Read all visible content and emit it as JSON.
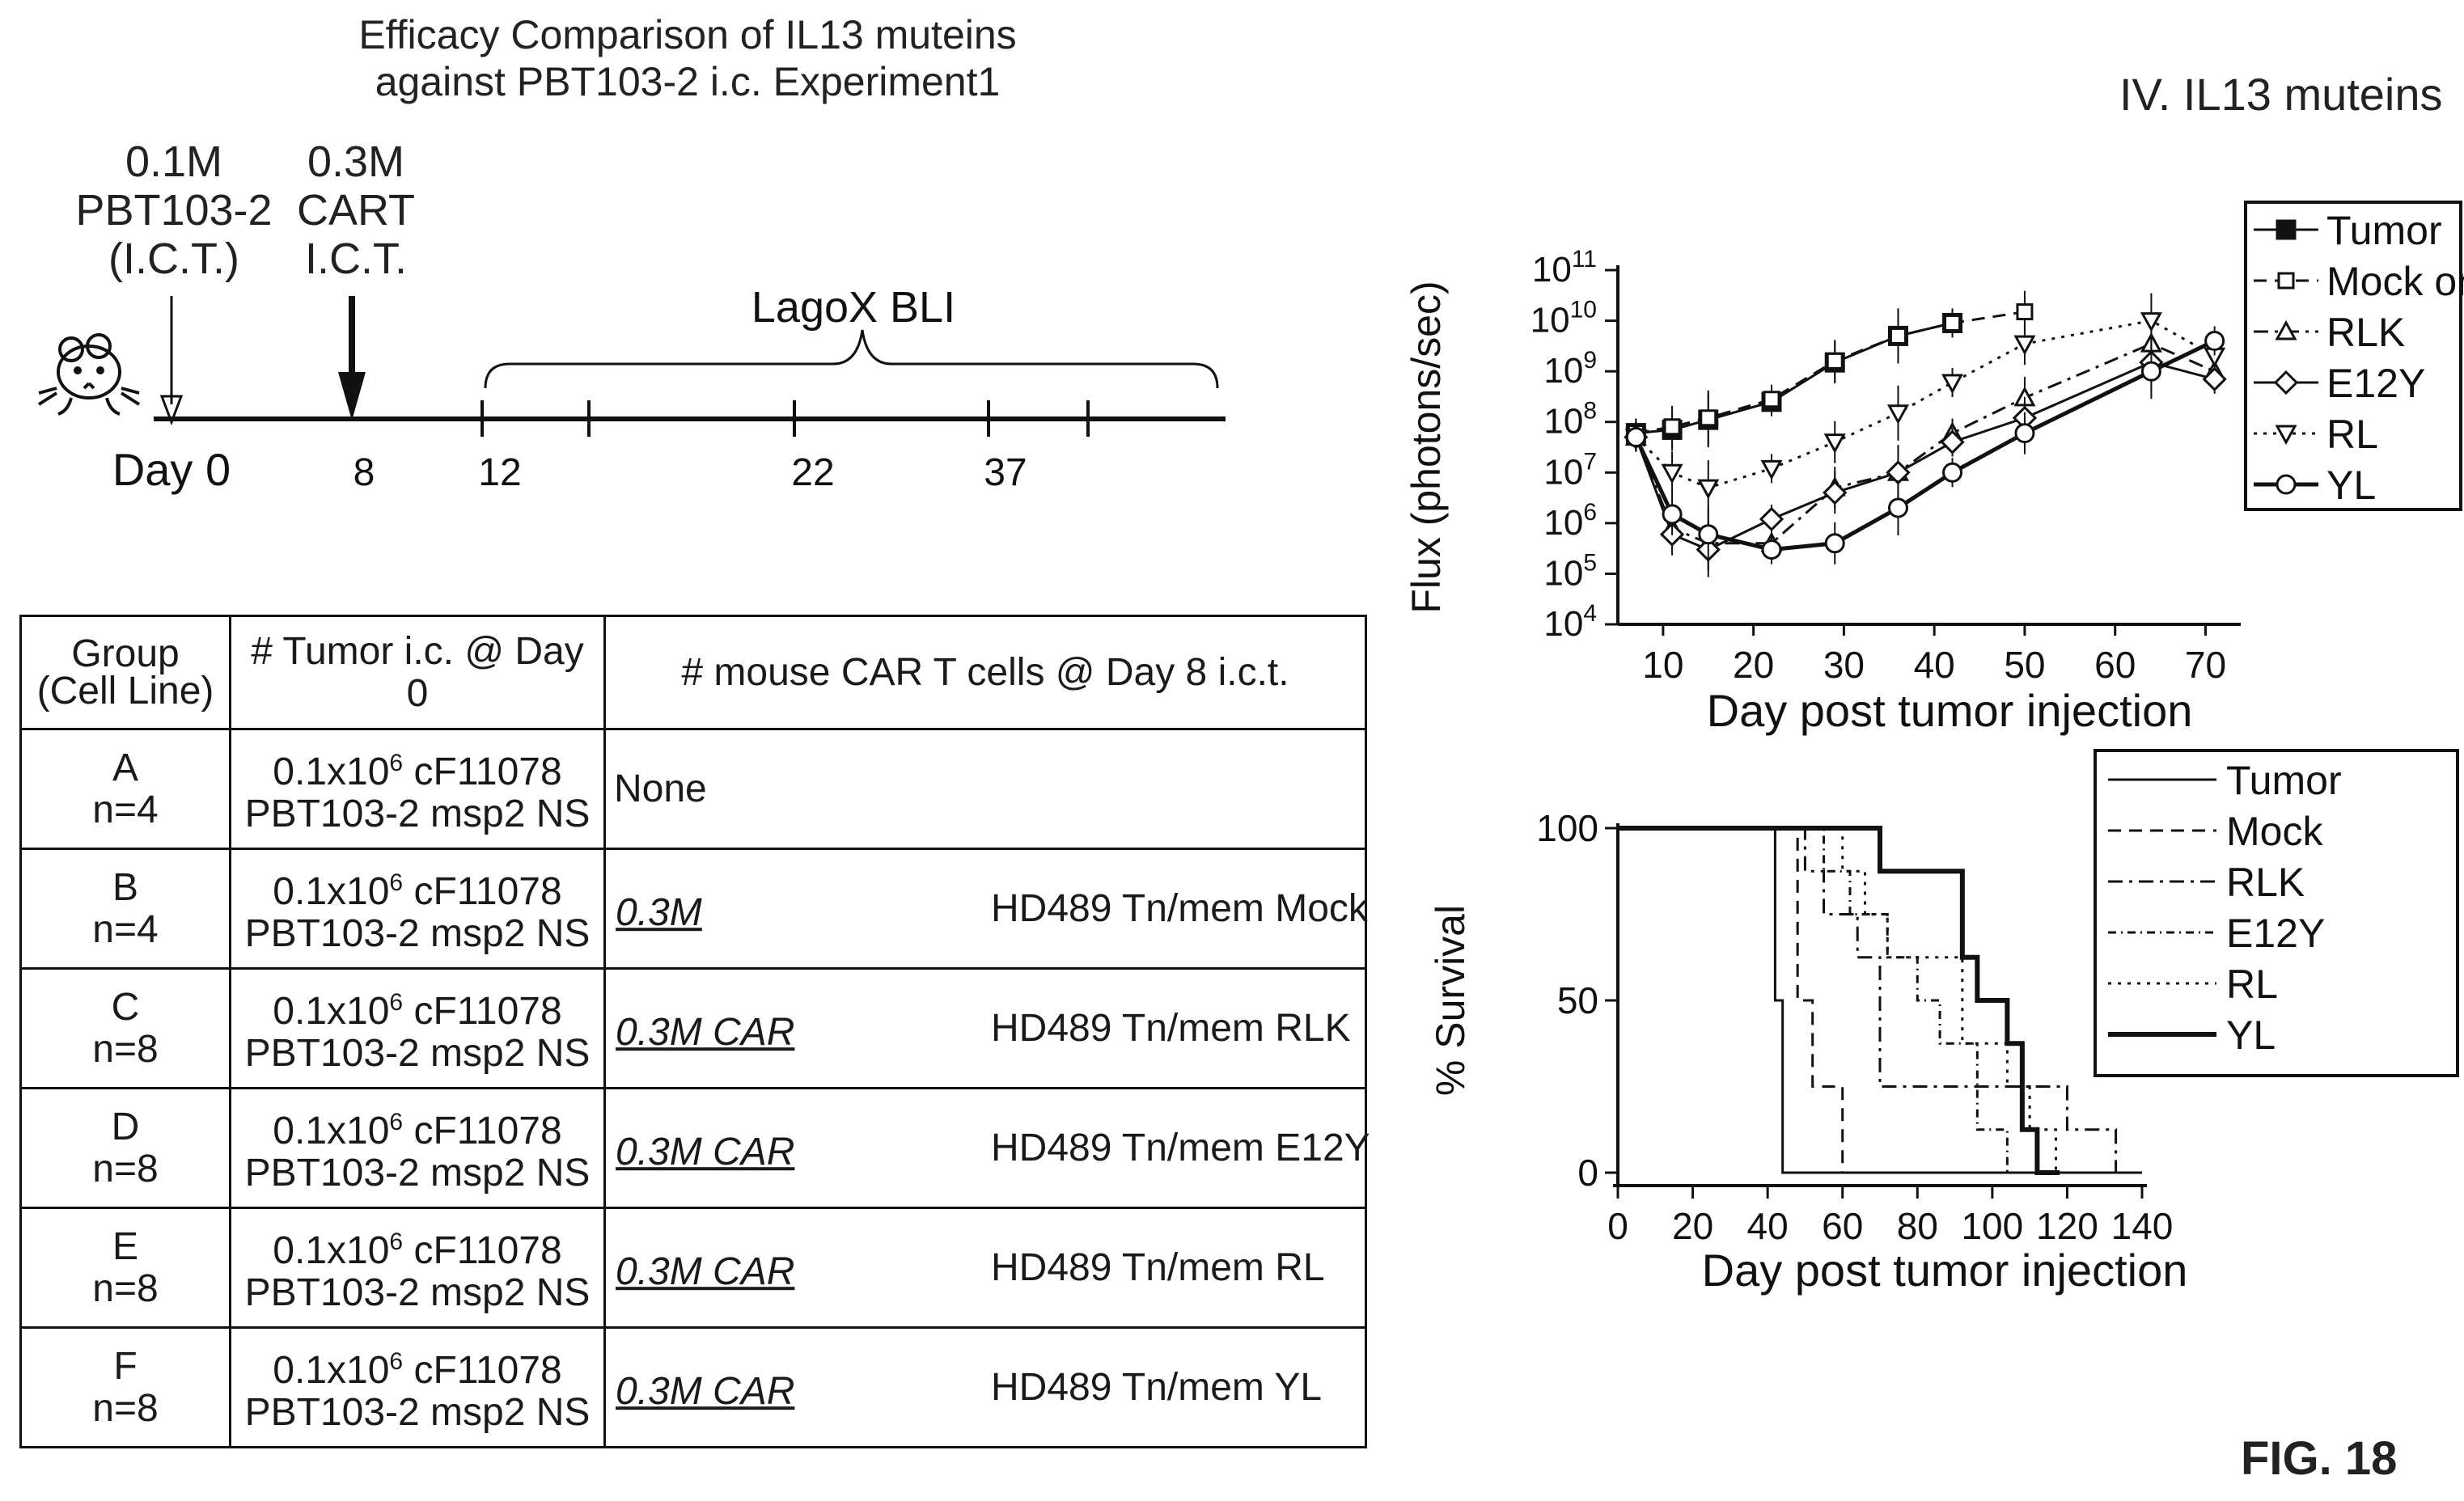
{
  "experiment": {
    "title_line1": "Efficacy Comparison of IL13 muteins",
    "title_line2": "against PBT103-2 i.c. Experiment1",
    "tumor_dose_line1": "0.1M",
    "tumor_dose_line2": "PBT103-2",
    "tumor_dose_line3": "(I.C.T.)",
    "cart_dose_line1": "0.3M",
    "cart_dose_line2": "CART",
    "cart_dose_line3": "I.C.T.",
    "imaging_label": "LagoX BLI",
    "day0_label": "Day 0",
    "day_ticks": [
      "8",
      "12",
      "22",
      "37"
    ]
  },
  "section_label": "IV. IL13 muteins",
  "figure_label": "FIG. 18",
  "table": {
    "headers": {
      "group_line1": "Group",
      "group_line2": "(Cell Line)",
      "tumor": "# Tumor i.c. @ Day 0",
      "cart": "# mouse CAR T cells @ Day 8 i.c.t."
    },
    "rows": [
      {
        "group": "A",
        "n": "n=4",
        "tumor_pre": "0.1x10",
        "tumor_sup": "6",
        "tumor_post": " cF11078",
        "tumor_line2": "PBT103-2 msp2 NS",
        "dose": "",
        "cells": "None"
      },
      {
        "group": "B",
        "n": "n=4",
        "tumor_pre": "0.1x10",
        "tumor_sup": "6",
        "tumor_post": " cF11078",
        "tumor_line2": "PBT103-2 msp2 NS",
        "dose": "0.3M",
        "cells": "HD489 Tn/mem Mock"
      },
      {
        "group": "C",
        "n": "n=8",
        "tumor_pre": "0.1x10",
        "tumor_sup": "6",
        "tumor_post": " cF11078",
        "tumor_line2": "PBT103-2 msp2 NS",
        "dose": "0.3M CAR",
        "cells": "HD489 Tn/mem RLK"
      },
      {
        "group": "D",
        "n": "n=8",
        "tumor_pre": "0.1x10",
        "tumor_sup": "6",
        "tumor_post": " cF11078",
        "tumor_line2": "PBT103-2 msp2 NS",
        "dose": "0.3M CAR",
        "cells": "HD489 Tn/mem E12Y"
      },
      {
        "group": "E",
        "n": "n=8",
        "tumor_pre": "0.1x10",
        "tumor_sup": "6",
        "tumor_post": " cF11078",
        "tumor_line2": "PBT103-2 msp2 NS",
        "dose": "0.3M CAR",
        "cells": "HD489 Tn/mem RL"
      },
      {
        "group": "F",
        "n": "n=8",
        "tumor_pre": "0.1x10",
        "tumor_sup": "6",
        "tumor_post": " cF11078",
        "tumor_line2": "PBT103-2 msp2 NS",
        "dose": "0.3M CAR",
        "cells": "HD489 Tn/mem YL"
      }
    ]
  },
  "chart_data": [
    {
      "type": "line",
      "xlabel": "Day post tumor injection",
      "ylabel": "Flux (photons/sec)",
      "yscale": "log",
      "xlim": [
        5,
        73
      ],
      "ylim": [
        10000,
        100000000000
      ],
      "xticks": [
        10,
        20,
        30,
        40,
        50,
        60,
        70
      ],
      "yticks": [
        {
          "base": "10",
          "exp": "4"
        },
        {
          "base": "10",
          "exp": "5"
        },
        {
          "base": "10",
          "exp": "6"
        },
        {
          "base": "10",
          "exp": "7"
        },
        {
          "base": "10",
          "exp": "8"
        },
        {
          "base": "10",
          "exp": "9"
        },
        {
          "base": "10",
          "exp": "10"
        },
        {
          "base": "10",
          "exp": "11"
        }
      ],
      "legend_position": "top-right",
      "series": [
        {
          "name": "Tumor",
          "marker": "square-filled",
          "dash": "solid",
          "width": 3,
          "x": [
            7,
            11,
            15,
            22,
            29,
            36,
            42
          ],
          "y": [
            60000000.0,
            70000000.0,
            110000000.0,
            250000000.0,
            1500000000.0,
            5000000000.0,
            9000000000.0
          ]
        },
        {
          "name": "Mock only",
          "marker": "square-open",
          "dash": "dashed",
          "width": 3,
          "x": [
            7,
            11,
            15,
            22,
            29,
            36,
            42,
            50
          ],
          "y": [
            60000000.0,
            80000000.0,
            120000000.0,
            280000000.0,
            1600000000.0,
            5000000000.0,
            9000000000.0,
            15000000000.0
          ]
        },
        {
          "name": "RLK",
          "marker": "triangle-up-open",
          "dash": "dashdot",
          "width": 3,
          "x": [
            7,
            11,
            15,
            22,
            29,
            36,
            42,
            50,
            64,
            71
          ],
          "y": [
            50000000.0,
            800000.0,
            400000.0,
            400000.0,
            5000000.0,
            10000000.0,
            60000000.0,
            300000000.0,
            3500000000.0,
            1000000000.0
          ]
        },
        {
          "name": "E12Y",
          "marker": "diamond-open",
          "dash": "solid",
          "width": 3,
          "x": [
            7,
            11,
            15,
            22,
            29,
            36,
            42,
            50,
            64,
            71
          ],
          "y": [
            50000000.0,
            600000.0,
            300000.0,
            1200000.0,
            4000000.0,
            10000000.0,
            40000000.0,
            120000000.0,
            1500000000.0,
            700000000.0
          ]
        },
        {
          "name": "RL",
          "marker": "triangle-down-open",
          "dash": "dotted",
          "width": 3,
          "x": [
            7,
            11,
            15,
            22,
            29,
            36,
            42,
            50,
            64,
            71
          ],
          "y": [
            50000000.0,
            10000000.0,
            5000000.0,
            12000000.0,
            40000000.0,
            150000000.0,
            600000000.0,
            3500000000.0,
            10000000000.0,
            2000000000.0
          ]
        },
        {
          "name": "YL",
          "marker": "circle-open",
          "dash": "solid",
          "width": 5,
          "x": [
            7,
            11,
            15,
            22,
            29,
            36,
            42,
            50,
            64,
            71
          ],
          "y": [
            50000000.0,
            1500000.0,
            600000.0,
            300000.0,
            400000.0,
            2000000.0,
            10000000.0,
            60000000.0,
            1000000000.0,
            4000000000.0
          ]
        }
      ]
    },
    {
      "type": "line",
      "step": true,
      "xlabel": "Day post tumor injection",
      "ylabel": "% Survival",
      "xlim": [
        0,
        140
      ],
      "ylim": [
        0,
        100
      ],
      "xticks": [
        0,
        20,
        40,
        60,
        80,
        100,
        120,
        140
      ],
      "yticks": [
        0,
        50,
        100
      ],
      "legend_position": "top-right",
      "series": [
        {
          "name": "Tumor",
          "dash": "solid",
          "width": 3,
          "x": [
            0,
            42,
            42,
            44,
            44,
            140
          ],
          "y": [
            100,
            100,
            50,
            50,
            0,
            0
          ]
        },
        {
          "name": "Mock",
          "dash": "dashed",
          "width": 3,
          "x": [
            0,
            48,
            48,
            52,
            52,
            60,
            60,
            140
          ],
          "y": [
            100,
            100,
            50,
            50,
            25,
            25,
            0,
            0
          ]
        },
        {
          "name": "RLK",
          "dash": "dashdot",
          "width": 3,
          "x": [
            0,
            50,
            50,
            55,
            55,
            64,
            64,
            70,
            70,
            120,
            120,
            133,
            133
          ],
          "y": [
            100,
            100,
            87.5,
            87.5,
            75,
            75,
            62.5,
            62.5,
            25,
            25,
            12.5,
            12.5,
            0
          ]
        },
        {
          "name": "E12Y",
          "dash": "dashdot2",
          "width": 3,
          "x": [
            0,
            55,
            55,
            62,
            62,
            72,
            72,
            80,
            80,
            86,
            86,
            96,
            96,
            104,
            104
          ],
          "y": [
            100,
            100,
            87.5,
            87.5,
            75,
            75,
            62.5,
            62.5,
            50,
            50,
            37.5,
            37.5,
            12.5,
            12.5,
            0
          ]
        },
        {
          "name": "RL",
          "dash": "dotted",
          "width": 3,
          "x": [
            0,
            60,
            60,
            66,
            66,
            72,
            72,
            92,
            92,
            104,
            104,
            110,
            110,
            117,
            117
          ],
          "y": [
            100,
            100,
            87.5,
            87.5,
            75,
            75,
            62.5,
            62.5,
            37.5,
            37.5,
            25,
            25,
            12.5,
            12.5,
            0
          ]
        },
        {
          "name": "YL",
          "dash": "solid",
          "width": 6,
          "x": [
            0,
            70,
            70,
            92,
            92,
            96,
            96,
            104,
            104,
            108,
            108,
            112,
            112,
            118,
            118
          ],
          "y": [
            100,
            100,
            87.5,
            87.5,
            62.5,
            62.5,
            50,
            50,
            37.5,
            37.5,
            12.5,
            12.5,
            0,
            0,
            0
          ]
        }
      ]
    }
  ]
}
